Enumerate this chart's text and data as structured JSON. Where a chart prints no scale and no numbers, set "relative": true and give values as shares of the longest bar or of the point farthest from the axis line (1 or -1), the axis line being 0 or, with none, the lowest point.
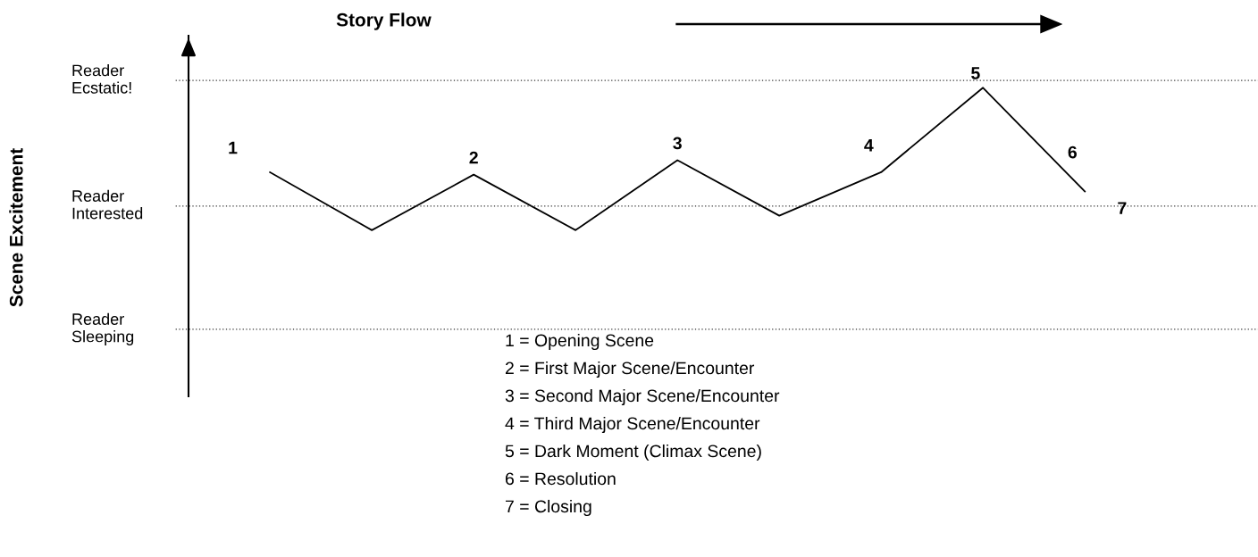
{
  "chart_data": {
    "type": "line",
    "xlabel": "Story Flow",
    "relative": true,
    "categories": [
      null,
      null,
      null,
      null,
      null,
      null,
      null,
      null,
      null
    ],
    "series": [
      {
        "color": "#000000",
        "values": [
          0.65,
          0.41,
          0.64,
          0.41,
          0.7,
          0.47,
          0.65,
          1.0,
          0.57
        ]
      }
    ],
    "ref_lines": [
      {
        "axis": "y",
        "value": 0,
        "label": "Reader\nSleeping",
        "color": "#333333",
        "line_style": "dotted"
      },
      {
        "axis": "y",
        "value": 0.51,
        "label": "Reader\nInterested",
        "color": "#333333",
        "line_style": "dotted"
      },
      {
        "axis": "y",
        "value": 1.03,
        "label": "Reader\nEcstatic!",
        "color": "#333333",
        "line_style": "dotted"
      }
    ],
    "marker": "none",
    "line_style": "solid",
    "annotations": [
      "Scene Excitement",
      "1",
      "2",
      "3",
      "4",
      "5",
      "6",
      "7",
      "1 = Opening Scene",
      "2 = First Major Scene/Encounter",
      "3 = Second Major Scene/Encounter",
      "4 = Third Major Scene/Encounter",
      "5 = Dark Moment (Climax Scene)",
      "6 = Resolution",
      "7 = Closing"
    ]
  }
}
